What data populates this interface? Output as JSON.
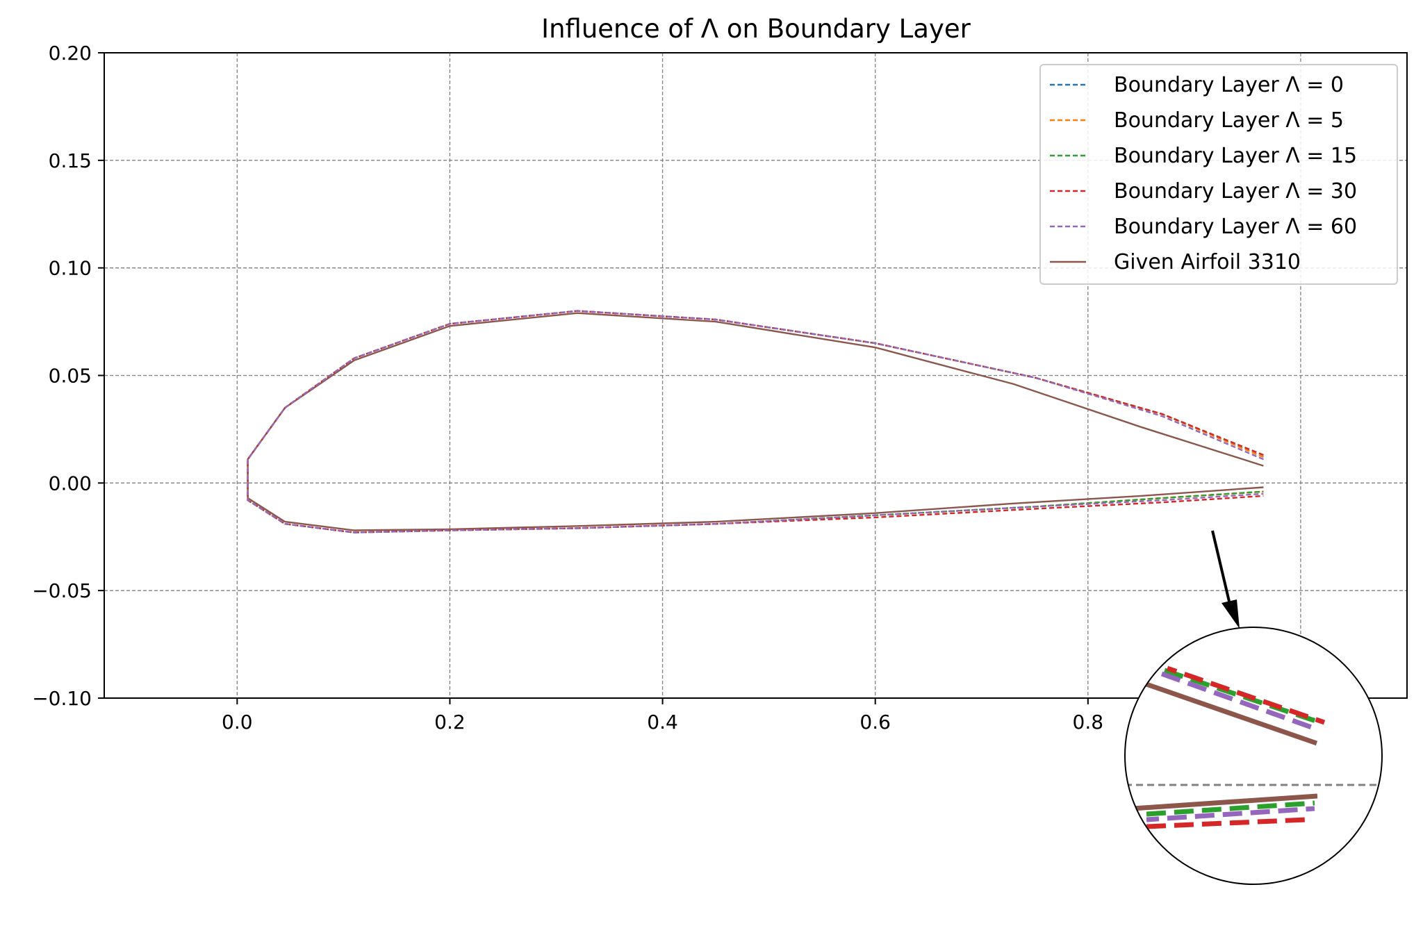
{
  "chart_data": {
    "type": "line",
    "title": "Influence of Λ on Boundary Layer",
    "xlabel": "",
    "ylabel": "",
    "xlim": [
      -0.125,
      1.1
    ],
    "ylim": [
      -0.1,
      0.2
    ],
    "x_ticks": [
      "0.0",
      "0.2",
      "0.4",
      "0.6",
      "0.8"
    ],
    "y_ticks": [
      "−0.10",
      "−0.05",
      "0.00",
      "0.05",
      "0.10",
      "0.15",
      "0.20"
    ],
    "grid": true,
    "legend_position": "top-right",
    "series": [
      {
        "name": "Boundary Layer Λ = 0",
        "style": "dashed",
        "color": "#1f77b4",
        "upper": {
          "x": [
            0.01,
            0.045,
            0.11,
            0.2,
            0.32,
            0.45,
            0.6,
            0.75,
            0.87,
            0.965
          ],
          "y": [
            0.011,
            0.035,
            0.058,
            0.074,
            0.08,
            0.076,
            0.065,
            0.049,
            0.032,
            0.012
          ]
        },
        "lower": {
          "x": [
            0.01,
            0.045,
            0.11,
            0.2,
            0.32,
            0.45,
            0.6,
            0.75,
            0.87,
            0.965
          ],
          "y": [
            -0.008,
            -0.019,
            -0.023,
            -0.022,
            -0.021,
            -0.019,
            -0.015,
            -0.011,
            -0.007,
            -0.004
          ]
        }
      },
      {
        "name": "Boundary Layer Λ = 5",
        "style": "dashed",
        "color": "#ff7f0e",
        "upper": {
          "x": [
            0.01,
            0.045,
            0.11,
            0.2,
            0.32,
            0.45,
            0.6,
            0.75,
            0.87,
            0.965
          ],
          "y": [
            0.011,
            0.035,
            0.058,
            0.074,
            0.08,
            0.076,
            0.065,
            0.049,
            0.032,
            0.012
          ]
        },
        "lower": {
          "x": [
            0.01,
            0.045,
            0.11,
            0.2,
            0.32,
            0.45,
            0.6,
            0.75,
            0.87,
            0.965
          ],
          "y": [
            -0.008,
            -0.019,
            -0.023,
            -0.022,
            -0.021,
            -0.019,
            -0.015,
            -0.011,
            -0.007,
            -0.004
          ]
        }
      },
      {
        "name": "Boundary Layer Λ = 15",
        "style": "dashed",
        "color": "#2ca02c",
        "upper": {
          "x": [
            0.01,
            0.045,
            0.11,
            0.2,
            0.32,
            0.45,
            0.6,
            0.75,
            0.87,
            0.965
          ],
          "y": [
            0.011,
            0.035,
            0.058,
            0.074,
            0.08,
            0.076,
            0.065,
            0.049,
            0.032,
            0.013
          ]
        },
        "lower": {
          "x": [
            0.01,
            0.045,
            0.11,
            0.2,
            0.32,
            0.45,
            0.6,
            0.75,
            0.87,
            0.965
          ],
          "y": [
            -0.008,
            -0.019,
            -0.023,
            -0.022,
            -0.021,
            -0.019,
            -0.015,
            -0.011,
            -0.007,
            -0.004
          ]
        }
      },
      {
        "name": "Boundary Layer Λ = 30",
        "style": "dashed",
        "color": "#d62728",
        "upper": {
          "x": [
            0.01,
            0.045,
            0.11,
            0.2,
            0.32,
            0.45,
            0.6,
            0.75,
            0.87,
            0.965
          ],
          "y": [
            0.011,
            0.035,
            0.058,
            0.074,
            0.08,
            0.076,
            0.065,
            0.049,
            0.032,
            0.013
          ]
        },
        "lower": {
          "x": [
            0.01,
            0.045,
            0.11,
            0.2,
            0.32,
            0.45,
            0.6,
            0.75,
            0.87,
            0.965
          ],
          "y": [
            -0.008,
            -0.019,
            -0.023,
            -0.022,
            -0.021,
            -0.019,
            -0.016,
            -0.012,
            -0.009,
            -0.006
          ]
        }
      },
      {
        "name": "Boundary Layer Λ = 60",
        "style": "dashed",
        "color": "#9467bd",
        "upper": {
          "x": [
            0.01,
            0.045,
            0.11,
            0.2,
            0.32,
            0.45,
            0.6,
            0.75,
            0.87,
            0.965
          ],
          "y": [
            0.011,
            0.035,
            0.058,
            0.074,
            0.08,
            0.076,
            0.065,
            0.049,
            0.031,
            0.011
          ]
        },
        "lower": {
          "x": [
            0.01,
            0.045,
            0.11,
            0.2,
            0.32,
            0.45,
            0.6,
            0.75,
            0.87,
            0.965
          ],
          "y": [
            -0.008,
            -0.019,
            -0.023,
            -0.022,
            -0.021,
            -0.019,
            -0.015,
            -0.011,
            -0.008,
            -0.005
          ]
        }
      },
      {
        "name": "Given Airfoil 3310",
        "style": "solid",
        "color": "#8c564b",
        "upper": {
          "x": [
            0.01,
            0.045,
            0.11,
            0.2,
            0.32,
            0.45,
            0.6,
            0.73,
            0.85,
            0.965
          ],
          "y": [
            0.011,
            0.035,
            0.057,
            0.073,
            0.079,
            0.075,
            0.063,
            0.046,
            0.026,
            0.008
          ]
        },
        "lower": {
          "x": [
            0.01,
            0.045,
            0.11,
            0.2,
            0.32,
            0.45,
            0.6,
            0.73,
            0.85,
            0.965
          ],
          "y": [
            -0.007,
            -0.018,
            -0.022,
            -0.0215,
            -0.02,
            -0.018,
            -0.014,
            -0.0095,
            -0.006,
            -0.002
          ]
        }
      }
    ]
  },
  "colors": {
    "grid": "#808080",
    "axes": "#000000",
    "zoom_arrow": "#000000"
  }
}
